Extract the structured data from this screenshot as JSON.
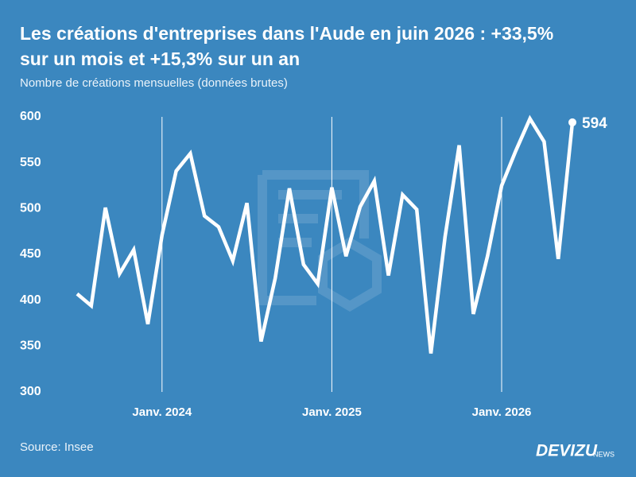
{
  "chart_data": {
    "type": "line",
    "title_lines": [
      "Les créations d'entreprises dans l'Aude en juin 2026 : +33,5%",
      "sur un mois et +15,3% sur un an"
    ],
    "subtitle": "Nombre de créations mensuelles (données brutes)",
    "source": "Source: Insee",
    "brand": "DEVIZU",
    "brand_suffix": "NEWS",
    "categories": [
      null,
      null,
      null,
      null,
      null,
      null,
      "Janv. 2024",
      null,
      null,
      null,
      null,
      null,
      null,
      null,
      null,
      null,
      null,
      null,
      "Janv. 2025",
      null,
      null,
      null,
      null,
      null,
      null,
      null,
      null,
      null,
      null,
      null,
      "Janv. 2026",
      null,
      null,
      null,
      null,
      null
    ],
    "series": [
      {
        "name": "Créations",
        "color": "#ffffff",
        "values": [
          407,
          394,
          501,
          429,
          455,
          374,
          471,
          541,
          560,
          492,
          480,
          443,
          506,
          355,
          424,
          522,
          439,
          418,
          523,
          448,
          502,
          530,
          427,
          515,
          499,
          342,
          469,
          569,
          385,
          448,
          525,
          563,
          598,
          573,
          445,
          594
        ]
      }
    ],
    "ylim": [
      300,
      600
    ],
    "yticks": [
      300,
      350,
      400,
      450,
      500,
      550,
      600
    ],
    "label_last": true,
    "grid_at_labels": true
  }
}
